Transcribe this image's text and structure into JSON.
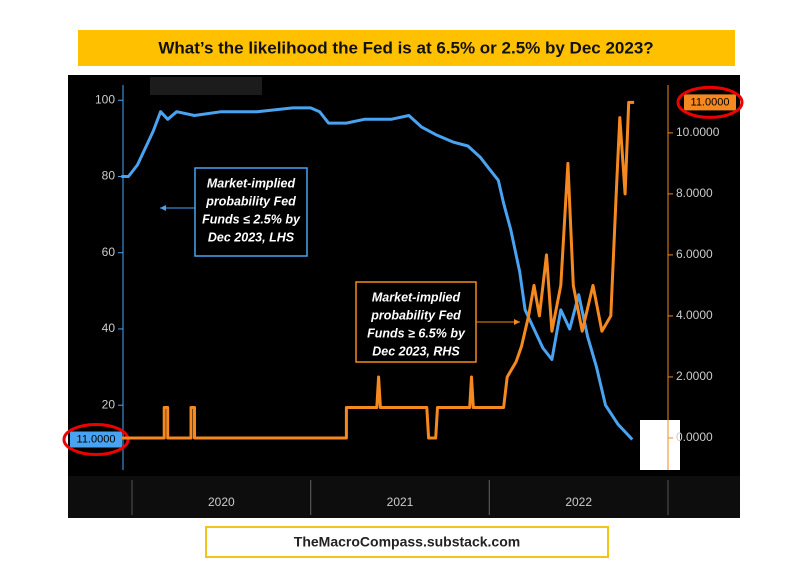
{
  "chart_data": {
    "type": "line",
    "title": "What’s the likelihood the Fed is at 6.5% or 2.5% by Dec 2023?",
    "footer": "TheMacroCompass.substack.com",
    "xlim": [
      2019.93,
      2023.0
    ],
    "xticks": [
      {
        "value": 2020.5,
        "label": "2020"
      },
      {
        "value": 2021.5,
        "label": "2021"
      },
      {
        "value": 2022.5,
        "label": "2022"
      }
    ],
    "ylim": [
      3,
      104
    ],
    "yticks": [
      20,
      40,
      60,
      80,
      100
    ],
    "y2lim": [
      -1.05,
      11.57
    ],
    "y2ticks": [
      {
        "value": 0,
        "label": "0.0000"
      },
      {
        "value": 2,
        "label": "2.0000"
      },
      {
        "value": 4,
        "label": "4.0000"
      },
      {
        "value": 6,
        "label": "6.0000"
      },
      {
        "value": 8,
        "label": "8.0000"
      },
      {
        "value": 10,
        "label": "10.0000"
      }
    ],
    "series": [
      {
        "name": [
          "Market-implied",
          "probability Fed",
          "Funds ≤ 2.5% by",
          "Dec 2023, LHS"
        ],
        "color": "#4aa3f0",
        "axis": "y",
        "badge": "11.0000",
        "x": [
          2019.94,
          2019.98,
          2020.03,
          2020.08,
          2020.12,
          2020.16,
          2020.2,
          2020.25,
          2020.35,
          2020.5,
          2020.7,
          2020.9,
          2021.0,
          2021.05,
          2021.1,
          2021.2,
          2021.3,
          2021.45,
          2021.55,
          2021.62,
          2021.7,
          2021.8,
          2021.88,
          2021.95,
          2022.0,
          2022.05,
          2022.08,
          2022.12,
          2022.17,
          2022.2,
          2022.25,
          2022.3,
          2022.35,
          2022.4,
          2022.45,
          2022.5,
          2022.55,
          2022.6,
          2022.65,
          2022.72,
          2022.8
        ],
        "values": [
          80,
          80,
          83,
          88,
          92,
          97,
          95,
          97,
          96,
          97,
          97,
          98,
          98,
          97,
          94,
          94,
          95,
          95,
          96,
          93,
          91,
          89,
          88,
          85,
          82,
          79,
          73,
          66,
          55,
          45,
          40,
          35,
          32,
          45,
          40,
          49,
          38,
          30,
          20,
          15,
          11
        ]
      },
      {
        "name": [
          "Market-implied",
          "probability Fed",
          "Funds ≥ 6.5% by",
          "Dec 2023, RHS"
        ],
        "color": "#f5891f",
        "axis": "y2",
        "badge": "11.0000",
        "x": [
          2019.94,
          2020.18,
          2020.18,
          2020.2,
          2020.2,
          2020.33,
          2020.33,
          2020.35,
          2020.35,
          2021.2,
          2021.2,
          2021.37,
          2021.38,
          2021.39,
          2021.65,
          2021.66,
          2021.7,
          2021.71,
          2021.89,
          2021.9,
          2021.91,
          2022.08,
          2022.1,
          2022.15,
          2022.18,
          2022.22,
          2022.25,
          2022.28,
          2022.32,
          2022.35,
          2022.4,
          2022.44,
          2022.47,
          2022.52,
          2022.58,
          2022.63,
          2022.68,
          2022.71,
          2022.73,
          2022.76,
          2022.78,
          2022.81
        ],
        "values": [
          0,
          0,
          1,
          1,
          0,
          0,
          1,
          1,
          0,
          0,
          1,
          1,
          2,
          1,
          1,
          0,
          0,
          1,
          1,
          2,
          1,
          1,
          2,
          2.5,
          3,
          4,
          5,
          4,
          6,
          3.5,
          5,
          9,
          5,
          3.5,
          5,
          3.5,
          4,
          8,
          10.5,
          8,
          11,
          11
        ]
      }
    ]
  }
}
